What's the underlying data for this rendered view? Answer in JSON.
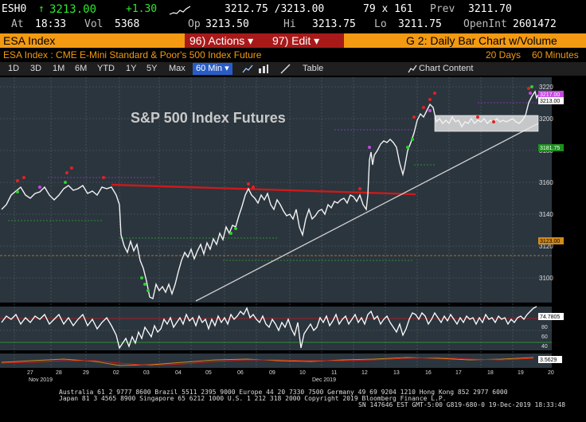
{
  "quote_row1": {
    "ticker": "ESH0",
    "arrow": "↑",
    "last": "3213.00",
    "change": "+1.30",
    "bid_ask": "3212.75 /3213.00",
    "size": "79 x 161",
    "prev_label": "Prev",
    "prev_value": "3211.70"
  },
  "quote_row2": {
    "at_label": "At",
    "time": "18:33",
    "vol_label": "Vol",
    "vol_value": "5368",
    "op_label": "Op",
    "op_value": "3213.50",
    "hi_label": "Hi",
    "hi_value": "3213.75",
    "lo_label": "Lo",
    "lo_value": "3211.75",
    "openint_label": "OpenInt",
    "openint_value": "2601472"
  },
  "menu_bar": {
    "security": "ESA Index",
    "actions": "96) Actions ▾",
    "edit": "97) Edit ▾",
    "chart_title": "G 2: Daily Bar Chart w/Volume"
  },
  "subheader": {
    "description": "ESA Index : CME E-Mini Standard & Poor's 500 Index Future",
    "days": "20 Days",
    "interval": "60 Minutes"
  },
  "toolbar": {
    "ranges": [
      "1D",
      "3D",
      "1M",
      "6M",
      "YTD",
      "1Y",
      "5Y",
      "Max"
    ],
    "interval_select": "60 Min ▾",
    "table": "Table",
    "chart_content": "Chart Content"
  },
  "chart": {
    "overlay_title": "S&P 500 Index Futures",
    "y_ticks": [
      "3220",
      "3200",
      "3180",
      "3160",
      "3140",
      "3120",
      "3100"
    ],
    "price_tags": [
      "3217.00",
      "3213.00",
      "3181.75",
      "3123.00"
    ],
    "osc_tags": [
      "74.7805",
      "80",
      "60",
      "40"
    ],
    "macd_tag": "3.5629",
    "x_labels": [
      "27",
      "28",
      "29",
      "02",
      "03",
      "04",
      "05",
      "06",
      "09",
      "10",
      "11",
      "12",
      "13",
      "16",
      "17",
      "18",
      "19",
      "20"
    ],
    "month_labels": [
      "Nov 2019",
      "Dec 2019"
    ]
  },
  "footer": {
    "line1": "Australia 61 2 9777 8600 Brazil 5511 2395 9000 Europe 44 20 7330 7500 Germany 49 69 9204 1210 Hong Kong 852 2977 6000",
    "line2": "Japan 81 3 4565 8900       Singapore 65 6212 1000       U.S. 1 212 318 2000             Copyright 2019 Bloomberg Finance L.P.",
    "line3": "SN 147646 EST  GMT-5:00 G819-680-0 19-Dec-2019 18:33:48"
  },
  "colors": {
    "accent_orange": "#f39a12",
    "menu_red": "#a81a1a",
    "resistance_red": "#cc1a1a",
    "support_line": "#cfcfcf",
    "selected_blue": "#2a5cc6"
  }
}
